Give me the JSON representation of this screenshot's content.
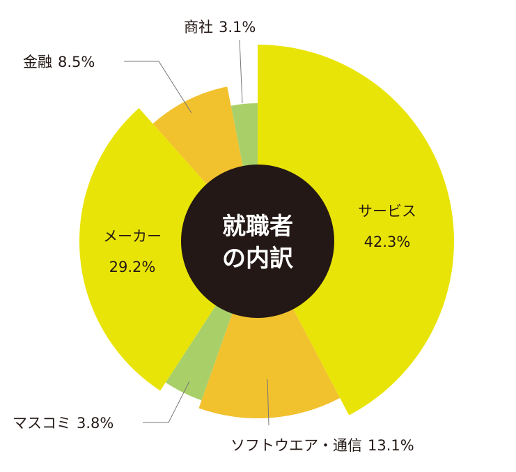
{
  "chart_data": {
    "type": "pie",
    "center_label": [
      "就職者",
      "の内訳"
    ],
    "slices": [
      {
        "label": "サービス",
        "value": 42.3,
        "value_text": "42.3%",
        "color": "#e9e407"
      },
      {
        "label": "ソフトウエア・通信",
        "value": 13.1,
        "value_text": "13.1%",
        "color": "#f2c12e"
      },
      {
        "label": "マスコミ",
        "value": 3.8,
        "value_text": "3.8%",
        "color": "#a9d068"
      },
      {
        "label": "メーカー",
        "value": 29.2,
        "value_text": "29.2%",
        "color": "#e9e407"
      },
      {
        "label": "金融",
        "value": 8.5,
        "value_text": "8.5%",
        "color": "#f2c12e"
      },
      {
        "label": "商社",
        "value": 3.1,
        "value_text": "3.1%",
        "color": "#a9d068"
      }
    ],
    "hole_color": "#231815"
  }
}
